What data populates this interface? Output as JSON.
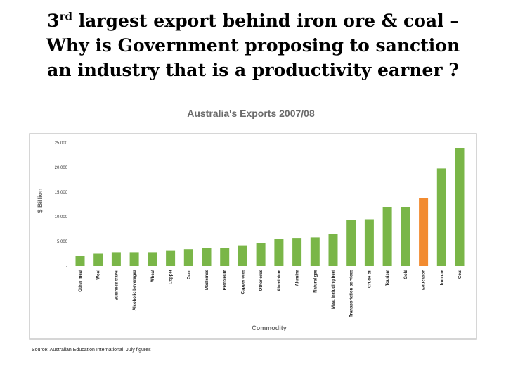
{
  "headline": {
    "line1_num": "3",
    "line1_sup": "rd",
    "line1_rest": " largest export behind iron ore & coal –",
    "line2": "Why is Government proposing to sanction",
    "line3": "an industry that is a productivity earner ?"
  },
  "chart_data": {
    "type": "bar",
    "title": "Australia's Exports 2007/08",
    "xlabel": "Commodity",
    "ylabel": "$ Billion",
    "ylim": [
      0,
      25000
    ],
    "yticks": [
      0,
      5000,
      10000,
      15000,
      20000,
      25000
    ],
    "ytick_labels": [
      "-",
      "5,000",
      "10,000",
      "15,000",
      "20,000",
      "25,000"
    ],
    "grid": false,
    "categories": [
      "Other meat",
      "Wool",
      "Business travel",
      "Alcoholic beverages",
      "Wheat",
      "Copper",
      "Corn",
      "Medicines",
      "Petroleum",
      "Copper ores",
      "Other ores",
      "Aluminium",
      "Alumina",
      "Natural gas",
      "Meat including beef",
      "Transportation services",
      "Crude oil",
      "Tourism",
      "Gold",
      "Education",
      "Iron ore",
      "Coal"
    ],
    "values": [
      2000,
      2500,
      2800,
      2800,
      2800,
      3200,
      3400,
      3700,
      3700,
      4200,
      4600,
      5500,
      5700,
      5800,
      6500,
      9300,
      9500,
      12000,
      12000,
      13800,
      19800,
      24000
    ],
    "highlight_category": "Education",
    "colors": {
      "bar": "#7ab648",
      "highlight": "#f28b30",
      "frame": "#c8c8c8"
    },
    "source": "Source: Australian Education International, July figures"
  }
}
